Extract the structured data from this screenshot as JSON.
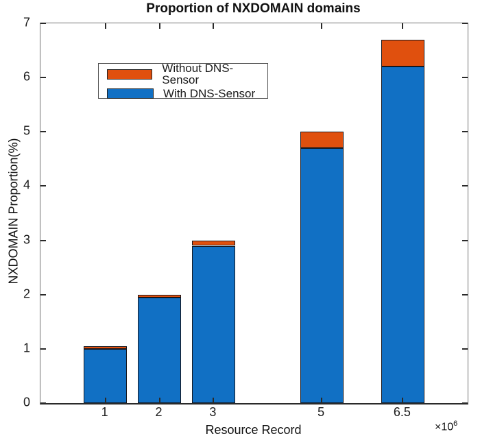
{
  "chart_data": {
    "type": "bar",
    "stacked": true,
    "title": "Proportion of NXDOMAIN domains",
    "xlabel": "Resource Record",
    "ylabel": "NXDOMAIN Proportion(%)",
    "x_offset_label": {
      "base": "×10",
      "exp": "6"
    },
    "categories": [
      1,
      2,
      3,
      5,
      6.5
    ],
    "x_tick_labels": [
      "1",
      "2",
      "3",
      "5",
      "6.5"
    ],
    "series": [
      {
        "name": "With DNS-Sensor",
        "color": "#1170c4",
        "values": [
          1.0,
          1.95,
          2.9,
          4.7,
          6.2
        ]
      },
      {
        "name": "Without DNS-Sensor",
        "color": "#e0500e",
        "values": [
          0.05,
          0.05,
          0.1,
          0.3,
          0.5
        ]
      }
    ],
    "stack_totals": [
      1.05,
      2.0,
      3.0,
      5.0,
      6.7
    ],
    "bar_width": 0.8,
    "bar_edge_color": "#16161d",
    "xlim": [
      -0.2,
      7.7
    ],
    "ylim": [
      0,
      7
    ],
    "y_ticks": [
      0,
      1,
      2,
      3,
      4,
      5,
      6,
      7
    ],
    "grid": false,
    "legend": {
      "position": "upper-left",
      "entries": [
        {
          "label": "Without DNS-Sensor",
          "color": "#e0500e"
        },
        {
          "label": "With DNS-Sensor",
          "color": "#1170c4"
        }
      ]
    }
  }
}
